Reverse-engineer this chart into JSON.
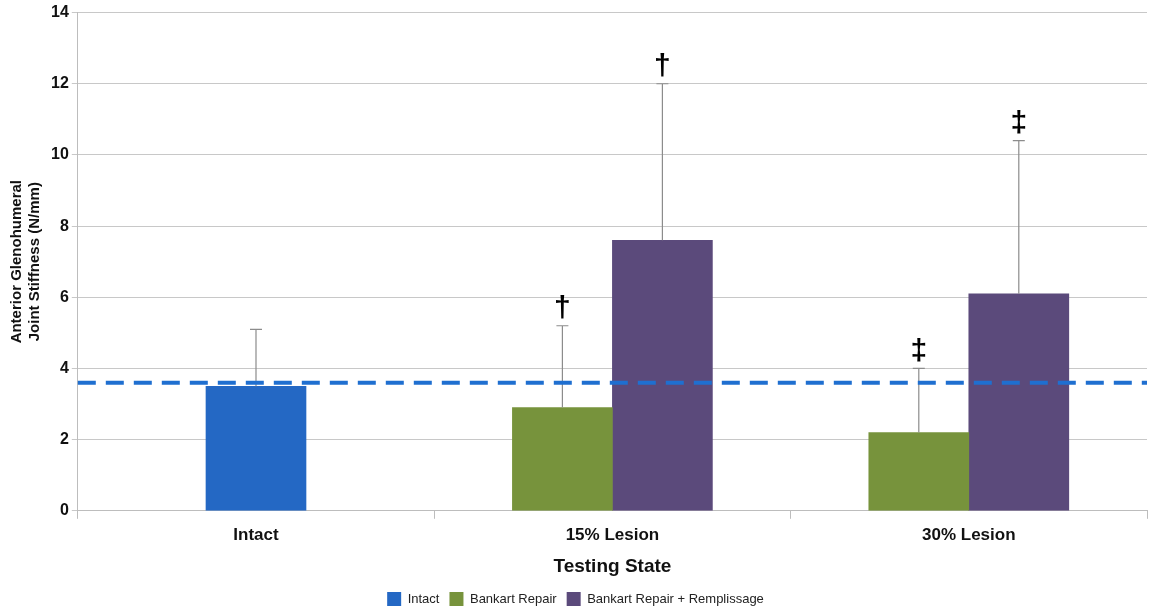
{
  "chart_data": {
    "type": "bar",
    "xlabel": "Testing State",
    "ylabel": "Anterior Glenohumeral Joint Stiffness (N/mm)",
    "categories": [
      "Intact",
      "15% Lesion",
      "30% Lesion"
    ],
    "series": [
      {
        "name": "Intact",
        "color": "#2468c4",
        "values": [
          3.5,
          null,
          null
        ],
        "errors": [
          [
            3.5,
            5.1
          ],
          null,
          null
        ]
      },
      {
        "name": "Bankart Repair",
        "color": "#77933c",
        "values": [
          null,
          2.9,
          2.2
        ],
        "errors": [
          null,
          [
            2.9,
            5.2
          ],
          [
            2.2,
            4.0
          ]
        ]
      },
      {
        "name": "Bankart Repair + Remplissage",
        "color": "#5b4a7b",
        "values": [
          null,
          7.6,
          6.1
        ],
        "errors": [
          null,
          [
            7.6,
            12.0
          ],
          [
            6.1,
            10.4
          ]
        ]
      }
    ],
    "ylim": [
      0,
      14
    ],
    "yticks": [
      0,
      2,
      4,
      6,
      8,
      10,
      12,
      14
    ],
    "grid": "y",
    "legend": "bottom",
    "ref_lines": [
      {
        "axis": "y",
        "value": 3.6,
        "color": "#1f6fd0",
        "line_style": "dashed"
      }
    ],
    "annotations": [
      {
        "text": "†",
        "x": "15% Lesion",
        "y": 5.2
      },
      "†",
      {
        "text": "‡",
        "x": "30% Lesion",
        "y": 4.0
      },
      "‡"
    ]
  }
}
